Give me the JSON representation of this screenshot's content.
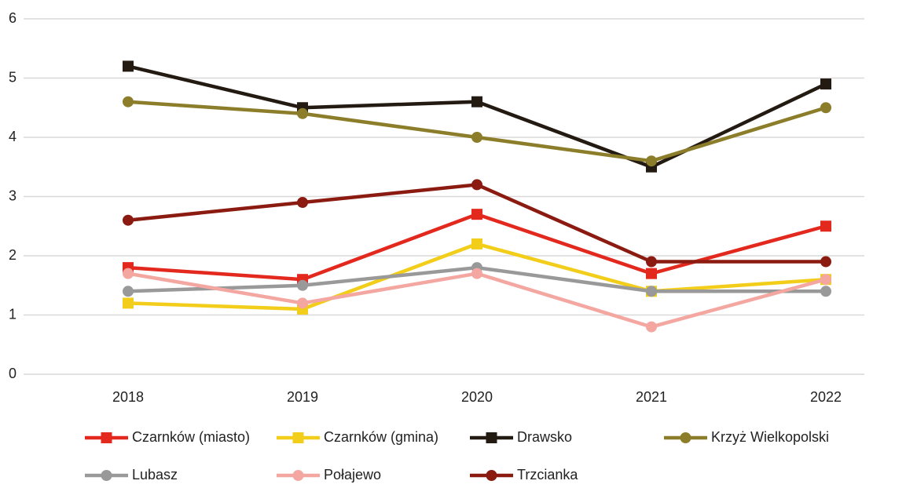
{
  "chart_data": {
    "type": "line",
    "categories": [
      "2018",
      "2019",
      "2020",
      "2021",
      "2022"
    ],
    "series": [
      {
        "name": "Czarnków (miasto)",
        "color": "#e3281e",
        "marker": "square",
        "values": [
          1.8,
          1.6,
          2.7,
          1.7,
          2.5
        ]
      },
      {
        "name": "Czarnków (gmina)",
        "color": "#f2cd1a",
        "marker": "square",
        "values": [
          1.2,
          1.1,
          2.2,
          1.4,
          1.6
        ]
      },
      {
        "name": "Drawsko",
        "color": "#231a12",
        "marker": "square",
        "values": [
          5.2,
          4.5,
          4.6,
          3.5,
          4.9
        ]
      },
      {
        "name": "Krzyż Wielkopolski",
        "color": "#8b7d2a",
        "marker": "circle",
        "values": [
          4.6,
          4.4,
          4.0,
          3.6,
          4.5
        ]
      },
      {
        "name": "Lubasz",
        "color": "#999999",
        "marker": "circle",
        "values": [
          1.4,
          1.5,
          1.8,
          1.4,
          1.4
        ]
      },
      {
        "name": "Połajewo",
        "color": "#f4a6a0",
        "marker": "circle",
        "values": [
          1.7,
          1.2,
          1.7,
          0.8,
          1.6
        ]
      },
      {
        "name": "Trzcianka",
        "color": "#8b1a10",
        "marker": "circle",
        "values": [
          2.6,
          2.9,
          3.2,
          1.9,
          1.9
        ]
      }
    ],
    "ylim": [
      0,
      6
    ],
    "yticks": [
      0,
      1,
      2,
      3,
      4,
      5,
      6
    ],
    "grid": true,
    "legend": "bottom"
  }
}
